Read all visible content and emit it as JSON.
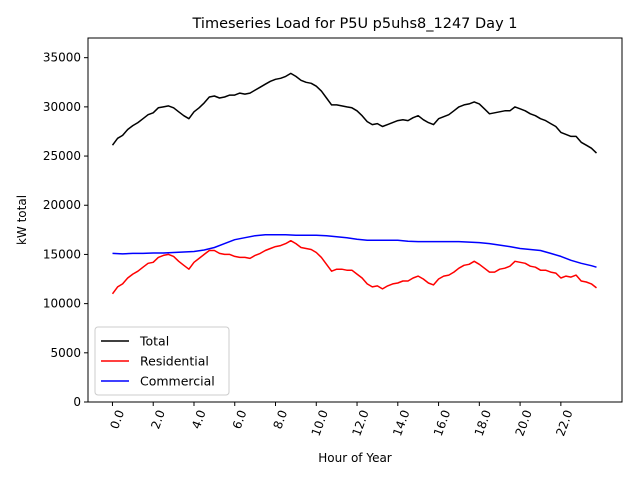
{
  "chart_data": {
    "type": "line",
    "title": "Timeseries Load for P5U p5uhs8_1247  Day 1",
    "xlabel": "Hour of Year",
    "ylabel": "kW total",
    "xlim": [
      -1.2,
      25.0
    ],
    "ylim": [
      0,
      37000
    ],
    "xticks": [
      0,
      2,
      4,
      6,
      8,
      10,
      12,
      14,
      16,
      18,
      20,
      22
    ],
    "xtick_labels": [
      "0.0",
      "2.0",
      "4.0",
      "6.0",
      "8.0",
      "10.0",
      "12.0",
      "14.0",
      "16.0",
      "18.0",
      "20.0",
      "22.0"
    ],
    "yticks": [
      0,
      5000,
      10000,
      15000,
      20000,
      25000,
      30000,
      35000
    ],
    "ytick_labels": [
      "0",
      "5000",
      "10000",
      "15000",
      "20000",
      "25000",
      "30000",
      "35000"
    ],
    "legend_position": "lower-left",
    "series": [
      {
        "name": "Total",
        "color": "#000000",
        "x": [
          0,
          0.25,
          0.5,
          0.75,
          1,
          1.25,
          1.5,
          1.75,
          2,
          2.25,
          2.5,
          2.75,
          3,
          3.25,
          3.5,
          3.75,
          4,
          4.25,
          4.5,
          4.75,
          5,
          5.25,
          5.5,
          5.75,
          6,
          6.25,
          6.5,
          6.75,
          7,
          7.25,
          7.5,
          7.75,
          8,
          8.25,
          8.5,
          8.75,
          9,
          9.25,
          9.5,
          9.75,
          10,
          10.25,
          10.5,
          10.75,
          11,
          11.25,
          11.5,
          11.75,
          12,
          12.25,
          12.5,
          12.75,
          13,
          13.25,
          13.5,
          13.75,
          14,
          14.25,
          14.5,
          14.75,
          15,
          15.25,
          15.5,
          15.75,
          16,
          16.25,
          16.5,
          16.75,
          17,
          17.25,
          17.5,
          17.75,
          18,
          18.25,
          18.5,
          18.75,
          19,
          19.25,
          19.5,
          19.75,
          20,
          20.25,
          20.5,
          20.75,
          21,
          21.25,
          21.5,
          21.75,
          22,
          22.25,
          22.5,
          22.75,
          23,
          23.25,
          23.5,
          23.75
        ],
        "values": [
          26100,
          26800,
          27100,
          27700,
          28100,
          28400,
          28800,
          29200,
          29400,
          29900,
          30000,
          30100,
          29900,
          29500,
          29100,
          28800,
          29500,
          29900,
          30400,
          31000,
          31100,
          30900,
          31000,
          31200,
          31200,
          31400,
          31300,
          31400,
          31700,
          32000,
          32300,
          32600,
          32800,
          32900,
          33100,
          33400,
          33100,
          32700,
          32500,
          32400,
          32100,
          31600,
          30900,
          30200,
          30200,
          30100,
          30000,
          29900,
          29600,
          29100,
          28500,
          28200,
          28300,
          28000,
          28200,
          28400,
          28600,
          28700,
          28600,
          28900,
          29100,
          28700,
          28400,
          28200,
          28800,
          29000,
          29200,
          29600,
          30000,
          30200,
          30300,
          30500,
          30300,
          29800,
          29300,
          29400,
          29500,
          29600,
          29600,
          30000,
          29800,
          29600,
          29300,
          29100,
          28800,
          28600,
          28300,
          28000,
          27400,
          27200,
          27000,
          27000,
          26400,
          26100,
          25800,
          25300
        ]
      },
      {
        "name": "Residential",
        "color": "#ff0000",
        "x": [
          0,
          0.25,
          0.5,
          0.75,
          1,
          1.25,
          1.5,
          1.75,
          2,
          2.25,
          2.5,
          2.75,
          3,
          3.25,
          3.5,
          3.75,
          4,
          4.25,
          4.5,
          4.75,
          5,
          5.25,
          5.5,
          5.75,
          6,
          6.25,
          6.5,
          6.75,
          7,
          7.25,
          7.5,
          7.75,
          8,
          8.25,
          8.5,
          8.75,
          9,
          9.25,
          9.5,
          9.75,
          10,
          10.25,
          10.5,
          10.75,
          11,
          11.25,
          11.5,
          11.75,
          12,
          12.25,
          12.5,
          12.75,
          13,
          13.25,
          13.5,
          13.75,
          14,
          14.25,
          14.5,
          14.75,
          15,
          15.25,
          15.5,
          15.75,
          16,
          16.25,
          16.5,
          16.75,
          17,
          17.25,
          17.5,
          17.75,
          18,
          18.25,
          18.5,
          18.75,
          19,
          19.25,
          19.5,
          19.75,
          20,
          20.25,
          20.5,
          20.75,
          21,
          21.25,
          21.5,
          21.75,
          22,
          22.25,
          22.5,
          22.75,
          23,
          23.25,
          23.5,
          23.75
        ],
        "values": [
          11000,
          11700,
          12000,
          12600,
          13000,
          13300,
          13700,
          14100,
          14200,
          14700,
          14900,
          15000,
          14800,
          14300,
          13900,
          13500,
          14200,
          14600,
          15000,
          15400,
          15400,
          15100,
          15000,
          15000,
          14800,
          14700,
          14700,
          14600,
          14900,
          15100,
          15400,
          15600,
          15800,
          15900,
          16100,
          16400,
          16100,
          15700,
          15600,
          15500,
          15200,
          14700,
          14000,
          13300,
          13500,
          13500,
          13400,
          13400,
          13000,
          12600,
          12000,
          11700,
          11800,
          11500,
          11800,
          12000,
          12100,
          12300,
          12300,
          12600,
          12800,
          12500,
          12100,
          11900,
          12500,
          12800,
          12900,
          13200,
          13600,
          13900,
          14000,
          14300,
          14000,
          13600,
          13200,
          13200,
          13500,
          13600,
          13800,
          14300,
          14200,
          14100,
          13800,
          13700,
          13400,
          13400,
          13200,
          13100,
          12600,
          12800,
          12700,
          12900,
          12300,
          12200,
          12000,
          11600
        ]
      },
      {
        "name": "Commercial",
        "color": "#0000ff",
        "x": [
          0,
          0.5,
          1,
          1.5,
          2,
          2.5,
          3,
          3.5,
          4,
          4.5,
          5,
          5.5,
          6,
          6.5,
          7,
          7.5,
          8,
          8.5,
          9,
          9.5,
          10,
          10.5,
          11,
          11.5,
          12,
          12.5,
          13,
          13.5,
          14,
          14.5,
          15,
          15.5,
          16,
          16.5,
          17,
          17.5,
          18,
          18.5,
          19,
          19.5,
          20,
          20.5,
          21,
          21.5,
          22,
          22.5,
          23,
          23.5,
          23.75
        ],
        "values": [
          15100,
          15050,
          15100,
          15100,
          15150,
          15150,
          15200,
          15250,
          15300,
          15450,
          15700,
          16100,
          16500,
          16700,
          16900,
          17000,
          17000,
          17000,
          16950,
          16950,
          16950,
          16900,
          16800,
          16700,
          16550,
          16450,
          16450,
          16450,
          16450,
          16350,
          16300,
          16300,
          16300,
          16300,
          16300,
          16250,
          16200,
          16100,
          15950,
          15800,
          15600,
          15500,
          15400,
          15100,
          14800,
          14400,
          14100,
          13850,
          13700
        ]
      }
    ]
  }
}
